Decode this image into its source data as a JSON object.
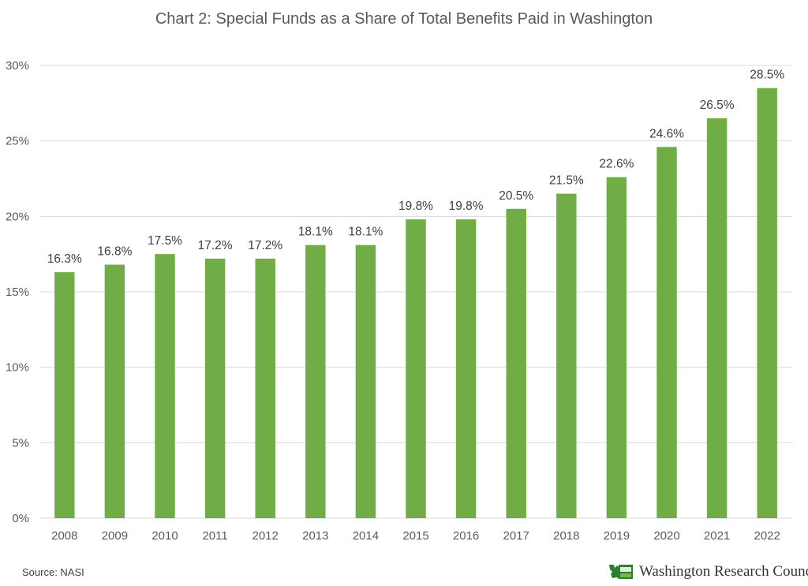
{
  "chart_data": {
    "type": "bar",
    "title": "Chart 2: Special Funds as a Share of Total Benefits Paid in Washington",
    "categories": [
      "2008",
      "2009",
      "2010",
      "2011",
      "2012",
      "2013",
      "2014",
      "2015",
      "2016",
      "2017",
      "2018",
      "2019",
      "2020",
      "2021",
      "2022"
    ],
    "values": [
      16.3,
      16.8,
      17.5,
      17.2,
      17.2,
      18.1,
      18.1,
      19.8,
      19.8,
      20.5,
      21.5,
      22.6,
      24.6,
      26.5,
      28.5
    ],
    "data_labels": [
      "16.3%",
      "16.8%",
      "17.5%",
      "17.2%",
      "17.2%",
      "18.1%",
      "18.1%",
      "19.8%",
      "19.8%",
      "20.5%",
      "21.5%",
      "22.6%",
      "24.6%",
      "26.5%",
      "28.5%"
    ],
    "ylim": [
      0,
      30
    ],
    "yticks": [
      0,
      5,
      10,
      15,
      20,
      25,
      30
    ],
    "ytick_labels": [
      "0%",
      "5%",
      "10%",
      "15%",
      "20%",
      "25%",
      "30%"
    ],
    "grid": true,
    "bar_color": "#70ad47"
  },
  "footer": {
    "source": "Source: NASI",
    "logo_text": "Washington Research Council",
    "logo_icon": "washington-state-icon"
  }
}
